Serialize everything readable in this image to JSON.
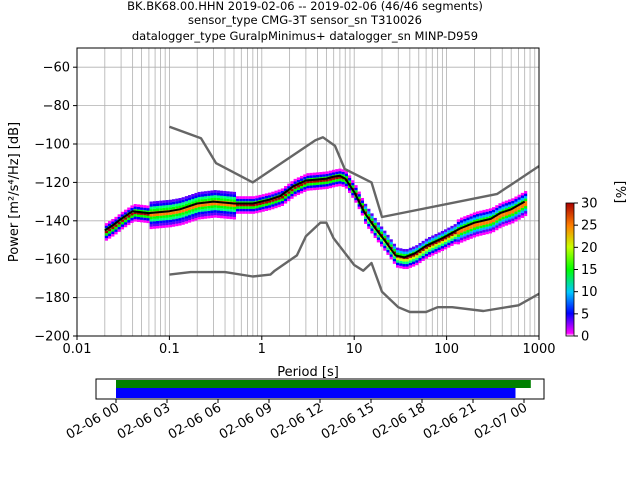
{
  "chart_data": [
    {
      "type": "heatmap",
      "title_lines": [
        "BK.BK68.00.HHN   2019-02-06 -- 2019-02-06  (46/46 segments)",
        "sensor_type CMG-3T sensor_sn T310026",
        "datalogger_type GuralpMinimus+ datalogger_sn MINP-D959"
      ],
      "xlabel": "Period [s]",
      "ylabel": "Power [m²/s⁴/Hz] [dB]",
      "x_scale": "log",
      "xlim": [
        0.01,
        1000
      ],
      "ylim": [
        -200,
        -50
      ],
      "x_ticks": [
        0.01,
        0.1,
        1,
        10,
        100,
        1000
      ],
      "x_tick_labels": [
        "0.01",
        "0.1",
        "1",
        "10",
        "100",
        "1000"
      ],
      "y_ticks": [
        -200,
        -180,
        -160,
        -140,
        -120,
        -100,
        -80,
        -60
      ],
      "y_tick_labels": [
        "−200",
        "−180",
        "−160",
        "−140",
        "−120",
        "−100",
        "−80",
        "−60"
      ],
      "grid": true,
      "series": [
        {
          "style": "dark gray noise model",
          "color": "#666666",
          "points": [
            [
              0.1,
              -91
            ],
            [
              0.22,
              -97
            ],
            [
              0.32,
              -110
            ],
            [
              0.8,
              -120
            ],
            [
              3.8,
              -98
            ],
            [
              4.6,
              -96.5
            ],
            [
              6.2,
              -101
            ],
            [
              7.9,
              -113
            ],
            [
              15.4,
              -120
            ],
            [
              20,
              -138
            ],
            [
              354,
              -126
            ],
            [
              1000,
              -111.5
            ]
          ]
        },
        {
          "style": "dark gray noise model",
          "color": "#666666",
          "points": [
            [
              0.1,
              -168
            ],
            [
              0.17,
              -166.7
            ],
            [
              0.4,
              -166.7
            ],
            [
              0.8,
              -169
            ],
            [
              1.24,
              -168
            ],
            [
              1.38,
              -166
            ],
            [
              2.4,
              -158
            ],
            [
              2.4,
              -158
            ],
            [
              3,
              -148
            ],
            [
              4.3,
              -141
            ],
            [
              5,
              -141
            ],
            [
              5.97,
              -149
            ],
            [
              10,
              -163
            ],
            [
              12.5,
              -166
            ],
            [
              15.4,
              -162
            ],
            [
              20,
              -177
            ],
            [
              30,
              -185
            ],
            [
              40,
              -187.5
            ],
            [
              60,
              -187.5
            ],
            [
              80,
              -185
            ],
            [
              115,
              -185
            ],
            [
              250,
              -187
            ],
            [
              600,
              -184
            ],
            [
              1000,
              -178
            ]
          ]
        },
        {
          "style": "mean PSD",
          "color": "#000000",
          "points": [
            [
              0.02,
              -145
            ],
            [
              0.025,
              -142
            ],
            [
              0.03,
              -139
            ],
            [
              0.04,
              -135
            ],
            [
              0.06,
              -136
            ],
            [
              0.1,
              -135
            ],
            [
              0.13,
              -134
            ],
            [
              0.2,
              -131
            ],
            [
              0.3,
              -130
            ],
            [
              0.5,
              -131
            ],
            [
              0.8,
              -131
            ],
            [
              1.2,
              -129
            ],
            [
              1.6,
              -127
            ],
            [
              2.2,
              -122
            ],
            [
              3,
              -119
            ],
            [
              4,
              -118.5
            ],
            [
              5,
              -118
            ],
            [
              6,
              -117
            ],
            [
              7,
              -116.5
            ],
            [
              8,
              -118
            ],
            [
              10,
              -125
            ],
            [
              13,
              -136
            ],
            [
              17,
              -144
            ],
            [
              22,
              -151
            ],
            [
              28,
              -158
            ],
            [
              35,
              -159
            ],
            [
              45,
              -157
            ],
            [
              60,
              -153
            ],
            [
              90,
              -149
            ],
            [
              140,
              -144
            ],
            [
              200,
              -141
            ],
            [
              300,
              -139
            ],
            [
              380,
              -136
            ],
            [
              500,
              -134
            ],
            [
              700,
              -130
            ]
          ]
        }
      ],
      "colorbar": {
        "label": "[%]",
        "ticks": [
          0,
          5,
          10,
          15,
          20,
          25,
          30
        ],
        "range": [
          0,
          30
        ]
      }
    },
    {
      "type": "bar",
      "xlim": [
        "02-06 00",
        "02-07 00"
      ],
      "x_tick_labels": [
        "02-06 00",
        "02-06 03",
        "02-06 06",
        "02-06 09",
        "02-06 12",
        "02-06 15",
        "02-06 18",
        "02-06 21",
        "02-07 00"
      ],
      "bars": [
        {
          "color": "#008000",
          "start_h": 0,
          "end_h": 24.4
        },
        {
          "color": "#0000ff",
          "start_h": 0,
          "end_h": 23.5
        }
      ]
    }
  ]
}
